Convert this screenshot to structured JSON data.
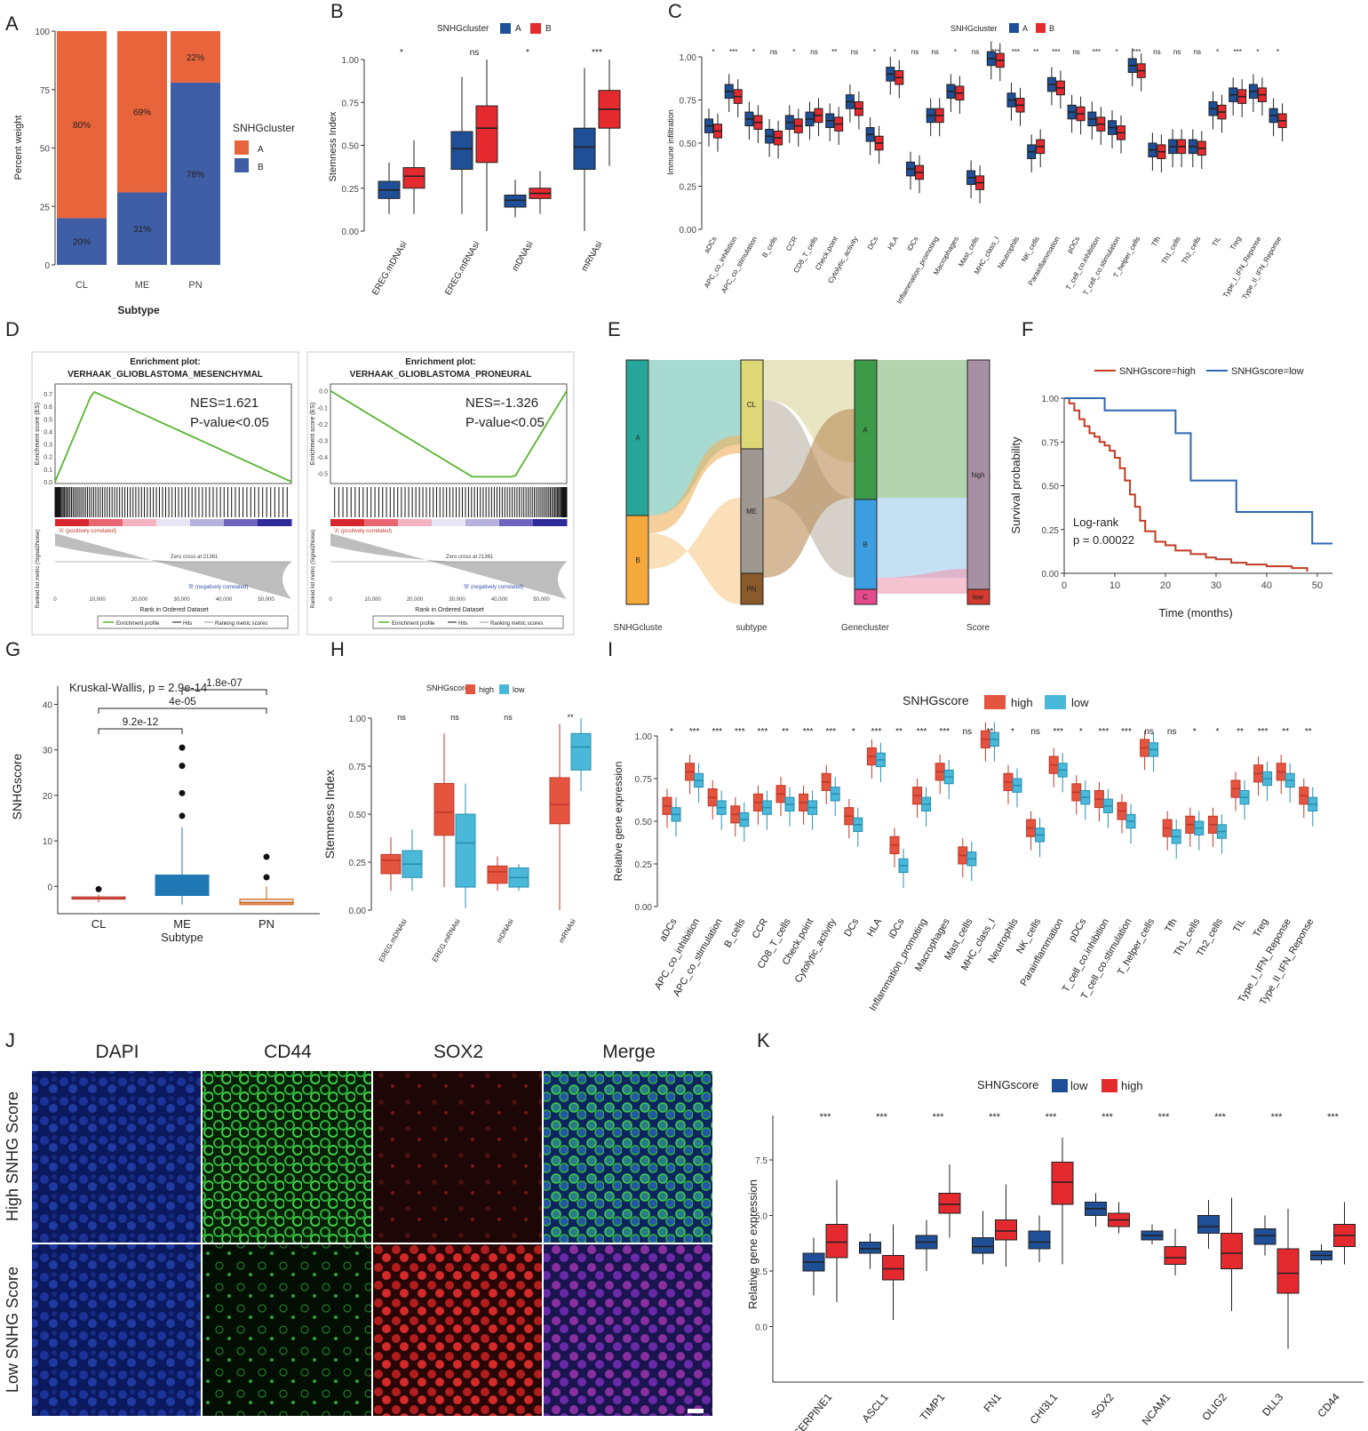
{
  "panel_letters": [
    "A",
    "B",
    "C",
    "D",
    "E",
    "F",
    "G",
    "H",
    "I",
    "J",
    "K"
  ],
  "colors": {
    "orange": "#e8643a",
    "navy": "#3f5ea6",
    "blue": "#1f4f96",
    "red": "#e4292f",
    "coral": "#e4543f",
    "cyan": "#4ab8d8",
    "surv_high": "#c23b22",
    "surv_low": "#2f67b3",
    "gsea_green": "#59b531"
  },
  "chart_data": [
    {
      "id": "A",
      "type": "bar",
      "stacked": true,
      "categories": [
        "CL",
        "ME",
        "PN"
      ],
      "series": [
        {
          "name": "A",
          "color": "#e8643a",
          "values": [
            80,
            69,
            22
          ],
          "labels": [
            "80%",
            "69%",
            "22%"
          ]
        },
        {
          "name": "B",
          "color": "#3f5ea6",
          "values": [
            20,
            31,
            78
          ],
          "labels": [
            "20%",
            "31%",
            "78%"
          ]
        }
      ],
      "xlabel": "Subtype",
      "ylabel": "Percent weight",
      "ylim": [
        0,
        100
      ],
      "yticks": [
        "0",
        "25",
        "50",
        "75",
        "100"
      ],
      "legend_title": "SNHGcluster",
      "legend": [
        "A",
        "B"
      ]
    },
    {
      "id": "B",
      "type": "box",
      "legend_title": "SNHGcluster",
      "legend": [
        "A",
        "B"
      ],
      "categories": [
        "EREG.mDNAsi",
        "EREG.mRNAsi",
        "mDNAsi",
        "mRNAsi"
      ],
      "signif": [
        "*",
        "ns",
        "*",
        "***"
      ],
      "ylabel": "Stemness Index",
      "ylim": [
        0,
        1
      ],
      "yticks": [
        "0.00",
        "0.25",
        "0.50",
        "0.75",
        "1.00"
      ],
      "series": [
        {
          "name": "A",
          "boxes": [
            [
              0.1,
              0.19,
              0.24,
              0.29,
              0.4
            ],
            [
              0.1,
              0.36,
              0.48,
              0.58,
              0.9
            ],
            [
              0.08,
              0.14,
              0.18,
              0.21,
              0.3
            ],
            [
              0.0,
              0.36,
              0.49,
              0.6,
              0.95
            ]
          ]
        },
        {
          "name": "B",
          "boxes": [
            [
              0.1,
              0.25,
              0.32,
              0.37,
              0.53
            ],
            [
              0,
              0.4,
              0.6,
              0.73,
              1.0
            ],
            [
              0.1,
              0.19,
              0.22,
              0.25,
              0.35
            ],
            [
              0.38,
              0.6,
              0.71,
              0.82,
              1.0
            ]
          ]
        }
      ]
    },
    {
      "id": "C",
      "type": "box",
      "legend_title": "SNHGcluster",
      "legend": [
        "A",
        "B"
      ],
      "categories": [
        "aDCs",
        "APC_co_inhibition",
        "APC_co_stimulation",
        "B_cells",
        "CCR",
        "CD8_T_cells",
        "Check.point",
        "Cytolytic_activity",
        "DCs",
        "HLA",
        "iDCs",
        "Inflammation_promoting",
        "Macrophages",
        "Mast_cells",
        "MHC_class_I",
        "Neutrophils",
        "NK_cells",
        "Parainflammation",
        "pDCs",
        "T_cell_co.inhibition",
        "T_cell_co.stimulation",
        "T_helper_cells",
        "Tfh",
        "Th1_cells",
        "Th2_cells",
        "TIL",
        "Treg",
        "Type_I_IFN_Reponse",
        "Type_II_IFN_Reponse"
      ],
      "signif": [
        "*",
        "***",
        "*",
        "ns",
        "*",
        "ns",
        "**",
        "ns",
        "*",
        "*",
        "ns",
        "ns",
        "*",
        "ns",
        "***",
        "***",
        "**",
        "***",
        "ns",
        "***",
        "*",
        "***",
        "ns",
        "ns",
        "ns",
        "*",
        "***",
        "*",
        "*"
      ],
      "ylabel": "Immune infiltration",
      "ylim": [
        0,
        1
      ],
      "yticks": [
        "0.00",
        "0.25",
        "0.50",
        "0.75",
        "1.00"
      ],
      "series": [
        {
          "name": "A",
          "medians": [
            0.6,
            0.8,
            0.64,
            0.54,
            0.62,
            0.64,
            0.63,
            0.74,
            0.55,
            0.9,
            0.35,
            0.66,
            0.8,
            0.3,
            0.99,
            0.75,
            0.45,
            0.84,
            0.68,
            0.64,
            0.59,
            0.95,
            0.46,
            0.48,
            0.48,
            0.7,
            0.78,
            0.8,
            0.66
          ]
        },
        {
          "name": "B",
          "medians": [
            0.57,
            0.77,
            0.62,
            0.53,
            0.6,
            0.66,
            0.61,
            0.7,
            0.5,
            0.88,
            0.33,
            0.66,
            0.79,
            0.27,
            0.98,
            0.72,
            0.48,
            0.82,
            0.67,
            0.61,
            0.56,
            0.92,
            0.45,
            0.48,
            0.47,
            0.68,
            0.77,
            0.78,
            0.63
          ]
        }
      ]
    },
    {
      "id": "D1",
      "type": "line",
      "title_line1": "Enrichment plot:",
      "title_line2": "VERHAAK_GLIOBLASTOMA_MESENCHYMAL",
      "nes": "NES=1.621",
      "pval": "P-value<0.05",
      "ylabel_top": "Enrichment score (ES)",
      "ylabel_bottom": "Ranked list metric (Signal2Noise)",
      "yticks": [
        "0.0",
        "0.1",
        "0.2",
        "0.3",
        "0.4",
        "0.5",
        "0.6",
        "0.7"
      ],
      "xticks": [
        "0",
        "10,000",
        "20,000",
        "30,000",
        "40,000",
        "50,000"
      ],
      "xlabel": "Rank in Ordered Dataset",
      "pos_label": "'A' (positively correlated)",
      "neg_label": "'B' (negatively correlated)",
      "zero_label": "Zero cross at 21361",
      "legend": [
        "Enrichment profile",
        "Hits",
        "Ranking metric scores"
      ]
    },
    {
      "id": "D2",
      "type": "line",
      "title_line1": "Enrichment plot:",
      "title_line2": "VERHAAK_GLIOBLASTOMA_PRONEURAL",
      "nes": "NES=-1.326",
      "pval": "P-value<0.05",
      "ylabel_top": "Enrichment score (ES)",
      "ylabel_bottom": "Ranked list metric (Signal2Noise)",
      "yticks": [
        "0.0",
        "-0.1",
        "-0.2",
        "-0.3",
        "-0.4",
        "-0.5"
      ],
      "xticks": [
        "0",
        "10,000",
        "20,000",
        "30,000",
        "40,000",
        "50,000"
      ],
      "xlabel": "Rank in Ordered Dataset",
      "pos_label": "'A' (positively correlated)",
      "neg_label": "'B' (negatively correlated)",
      "zero_label": "Zero cross at 21361",
      "legend": [
        "Enrichment profile",
        "Hits",
        "Ranking metric scores"
      ]
    },
    {
      "id": "E",
      "type": "alluvial",
      "axes": [
        "SNHGcluste",
        "subtype",
        "Genecluster",
        "Score"
      ],
      "strata": [
        [
          "A",
          "B"
        ],
        [
          "CL",
          "ME",
          "PN"
        ],
        [
          "A",
          "B",
          "C"
        ],
        [
          "high",
          "low"
        ]
      ]
    },
    {
      "id": "F",
      "type": "line",
      "legend": [
        "SNHGscore=high",
        "SNHGscore=low"
      ],
      "xlabel": "Time (months)",
      "ylabel": "Survival probability",
      "xlim": [
        0,
        53
      ],
      "ylim": [
        0,
        1
      ],
      "xticks": [
        "0",
        "10",
        "20",
        "30",
        "40",
        "50"
      ],
      "yticks": [
        "0.00",
        "0.25",
        "0.50",
        "0.75",
        "1.00"
      ],
      "annot_line1": "Log-rank",
      "annot_line2": "p = 0.00022",
      "series": [
        {
          "name": "SNHGscore=high",
          "color": "#c23b22",
          "x": [
            0,
            1,
            2,
            3,
            4,
            5,
            6,
            7,
            8,
            9,
            10,
            11,
            12,
            13,
            14,
            15,
            16,
            18,
            20,
            22,
            25,
            28,
            30,
            33,
            36,
            40,
            45,
            48
          ],
          "y": [
            1.0,
            0.97,
            0.93,
            0.88,
            0.84,
            0.8,
            0.78,
            0.75,
            0.73,
            0.7,
            0.66,
            0.6,
            0.53,
            0.45,
            0.38,
            0.3,
            0.24,
            0.18,
            0.16,
            0.13,
            0.11,
            0.09,
            0.08,
            0.06,
            0.05,
            0.04,
            0.03,
            0.01
          ]
        },
        {
          "name": "SNHGscore=low",
          "color": "#2f67b3",
          "x": [
            0,
            5,
            8,
            20,
            22,
            24,
            25,
            33,
            34,
            48,
            49,
            53
          ],
          "y": [
            1.0,
            1.0,
            0.93,
            0.93,
            0.8,
            0.8,
            0.53,
            0.53,
            0.35,
            0.35,
            0.17,
            0.17
          ]
        }
      ]
    },
    {
      "id": "G",
      "type": "box",
      "categories": [
        "CL",
        "ME",
        "PN"
      ],
      "xlabel": "Subtype",
      "ylabel": "SNHGscore",
      "ylim": [
        -6,
        44
      ],
      "yticks": [
        "0",
        "10",
        "20",
        "30",
        "40"
      ],
      "test": "Kruskal-Wallis, p = 2.9e-14",
      "brackets": [
        "1.8e-07",
        "4e-05",
        "9.2e-12"
      ],
      "boxes": [
        [
          -3.5,
          -2.8,
          -2.6,
          -2.3,
          -1.8
        ],
        [
          -4,
          -2,
          0,
          2.5,
          13
        ],
        [
          -4,
          -4,
          -3.6,
          -2.8,
          0
        ]
      ],
      "outliers": [
        [
          -0.6
        ],
        [
          15.5,
          20.5,
          26.5,
          30.5
        ],
        [
          2,
          6.5
        ]
      ],
      "box_colors": [
        "#c0392b",
        "#1f77b4",
        "#d35400"
      ]
    },
    {
      "id": "H",
      "type": "box",
      "legend_title": "SNHGscore",
      "legend": [
        "high",
        "low"
      ],
      "categories": [
        "EREG.mDNAsi",
        "EREG.mRNAsi",
        "mDNAsi",
        "mRNAsi"
      ],
      "signif": [
        "ns",
        "ns",
        "ns",
        "**"
      ],
      "ylabel": "Stemness Index",
      "ylim": [
        0,
        1
      ],
      "yticks": [
        "0.00",
        "0.25",
        "0.50",
        "0.75",
        "1.00"
      ],
      "series": [
        {
          "name": "high",
          "boxes": [
            [
              0.1,
              0.19,
              0.26,
              0.29,
              0.38
            ],
            [
              0.12,
              0.39,
              0.51,
              0.66,
              0.92
            ],
            [
              0.1,
              0.14,
              0.2,
              0.23,
              0.28
            ],
            [
              0.0,
              0.45,
              0.55,
              0.69,
              0.97
            ]
          ]
        },
        {
          "name": "low",
          "boxes": [
            [
              0.1,
              0.17,
              0.24,
              0.31,
              0.42
            ],
            [
              0.01,
              0.12,
              0.35,
              0.5,
              0.66
            ],
            [
              0.1,
              0.12,
              0.17,
              0.22,
              0.24
            ],
            [
              0.62,
              0.73,
              0.85,
              0.92,
              1.0
            ]
          ]
        }
      ]
    },
    {
      "id": "I",
      "type": "box",
      "legend_title": "SNHGscore",
      "legend": [
        "high",
        "low"
      ],
      "categories": [
        "aDCs",
        "APC_co_inhibition",
        "APC_co_stimulation",
        "B_cells",
        "CCR",
        "CD8_T_cells",
        "Check.point",
        "Cytolytic_activity",
        "DCs",
        "HLA",
        "iDCs",
        "Inflammation_promoting",
        "Macrophages",
        "Mast_cells",
        "MHC_class_I",
        "Neutrophils",
        "NK_cells",
        "Parainflammation",
        "pDCs",
        "T_cell_co.inhibition",
        "T_cell_co.stimulation",
        "T_helper_cells",
        "Tfh",
        "Th1_cells",
        "Th2_cells",
        "TIL",
        "Treg",
        "Type_I_IFN_Reponse",
        "Type_II_IFN_Reponse"
      ],
      "signif": [
        "*",
        "***",
        "***",
        "***",
        "***",
        "**",
        "***",
        "***",
        "*",
        "***",
        "**",
        "***",
        "***",
        "ns",
        "**",
        "*",
        "ns",
        "***",
        "*",
        "***",
        "***",
        "ns",
        "ns",
        "*",
        "*",
        "**",
        "***",
        "**",
        "**"
      ],
      "ylabel": "Relative gene expression",
      "ylim": [
        0,
        1
      ],
      "yticks": [
        "0.00",
        "0.25",
        "0.50",
        "0.75",
        "1.00"
      ],
      "series": [
        {
          "name": "high",
          "medians": [
            0.59,
            0.79,
            0.64,
            0.54,
            0.61,
            0.66,
            0.61,
            0.73,
            0.53,
            0.88,
            0.36,
            0.65,
            0.79,
            0.3,
            0.98,
            0.73,
            0.46,
            0.83,
            0.67,
            0.63,
            0.56,
            0.93,
            0.46,
            0.48,
            0.48,
            0.69,
            0.78,
            0.79,
            0.65
          ]
        },
        {
          "name": "low",
          "medians": [
            0.54,
            0.74,
            0.58,
            0.51,
            0.58,
            0.6,
            0.58,
            0.66,
            0.48,
            0.86,
            0.24,
            0.6,
            0.76,
            0.28,
            0.98,
            0.71,
            0.42,
            0.8,
            0.64,
            0.59,
            0.5,
            0.92,
            0.41,
            0.46,
            0.44,
            0.64,
            0.75,
            0.74,
            0.6
          ]
        }
      ]
    },
    {
      "id": "K",
      "type": "box",
      "legend_title": "SHNGscore",
      "legend": [
        "low",
        "high"
      ],
      "categories": [
        "SERPINE1",
        "ASCL1",
        "TIMP1",
        "FN1",
        "CHI3L1",
        "SOX2",
        "NCAM1",
        "OLIG2",
        "DLL3",
        "CD44"
      ],
      "signif": [
        "***",
        "***",
        "***",
        "***",
        "***",
        "***",
        "***",
        "***",
        "***",
        "***"
      ],
      "ylabel": "Relative gene expression",
      "ylim": [
        -2.5,
        9.5
      ],
      "yticks": [
        "0.0",
        "2.5",
        "5.0",
        "7.5"
      ],
      "series": [
        {
          "name": "low",
          "boxes": [
            [
              1.4,
              2.5,
              2.9,
              3.3,
              4.0
            ],
            [
              2.6,
              3.3,
              3.5,
              3.8,
              4.2
            ],
            [
              2.5,
              3.5,
              3.8,
              4.1,
              4.8
            ],
            [
              2.8,
              3.3,
              3.6,
              4.0,
              5.2
            ],
            [
              2.9,
              3.5,
              3.8,
              4.3,
              5.0
            ],
            [
              4.5,
              5.0,
              5.3,
              5.6,
              6.0
            ],
            [
              3.7,
              3.9,
              4.1,
              4.3,
              4.6
            ],
            [
              3.5,
              4.2,
              4.5,
              5.0,
              5.7
            ],
            [
              3.2,
              3.7,
              4.1,
              4.4,
              5.0
            ],
            [
              2.8,
              3.0,
              3.2,
              3.4,
              3.7
            ]
          ]
        },
        {
          "name": "high",
          "boxes": [
            [
              1.1,
              3.1,
              3.8,
              4.6,
              6.6
            ],
            [
              0.3,
              2.1,
              2.6,
              3.2,
              4.6
            ],
            [
              4.0,
              5.1,
              5.5,
              6.0,
              7.3
            ],
            [
              2.7,
              3.9,
              4.3,
              4.8,
              6.4
            ],
            [
              2.8,
              5.5,
              6.5,
              7.4,
              8.5
            ],
            [
              4.2,
              4.5,
              4.8,
              5.1,
              5.6
            ],
            [
              2.3,
              2.8,
              3.1,
              3.6,
              4.4
            ],
            [
              0.7,
              2.6,
              3.3,
              4.2,
              5.8
            ],
            [
              -1.0,
              1.5,
              2.4,
              3.5,
              5.3
            ],
            [
              2.8,
              3.6,
              4.1,
              4.6,
              5.6
            ]
          ]
        }
      ]
    }
  ],
  "panel_J": {
    "columns": [
      "DAPI",
      "CD44",
      "SOX2",
      "Merge"
    ],
    "rows": [
      "High SNHG Score",
      "Low SNHG Score"
    ]
  }
}
